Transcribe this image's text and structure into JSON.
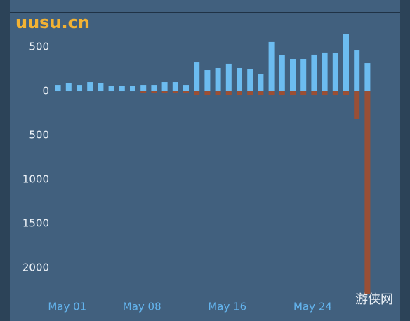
{
  "chart_data": {
    "type": "bar",
    "watermark": "uusu.cn",
    "corner_mark": "游侠网",
    "categories": [
      null,
      "May 01",
      null,
      null,
      null,
      null,
      null,
      null,
      "May 08",
      null,
      null,
      null,
      null,
      null,
      null,
      null,
      "May 16",
      null,
      null,
      null,
      null,
      null,
      null,
      null,
      "May 24",
      null,
      null,
      null,
      null,
      null
    ],
    "series": [
      {
        "color": "#6cbcf0",
        "values": [
          71,
          95,
          71,
          103,
          95,
          63,
          63,
          63,
          71,
          71,
          103,
          103,
          71,
          325,
          238,
          262,
          310,
          262,
          246,
          198,
          556,
          405,
          365,
          365,
          413,
          437,
          429,
          643,
          460,
          317
        ]
      },
      {
        "color": "#9a4f35",
        "values": [
          0,
          0,
          0,
          0,
          0,
          0,
          0,
          0,
          -20,
          -20,
          -20,
          -20,
          -20,
          -40,
          -40,
          -40,
          -40,
          -40,
          -40,
          -40,
          -40,
          -40,
          -40,
          -40,
          -40,
          -40,
          -40,
          -40,
          -317,
          -2300
        ]
      }
    ],
    "ylim": [
      -2300,
      714
    ],
    "yticks": [
      500,
      0,
      {
        "value": -500,
        "label": "500"
      },
      {
        "value": -1000,
        "label": "1000"
      },
      {
        "value": -1500,
        "label": "1500"
      },
      {
        "value": -2000,
        "label": "2000"
      }
    ]
  }
}
